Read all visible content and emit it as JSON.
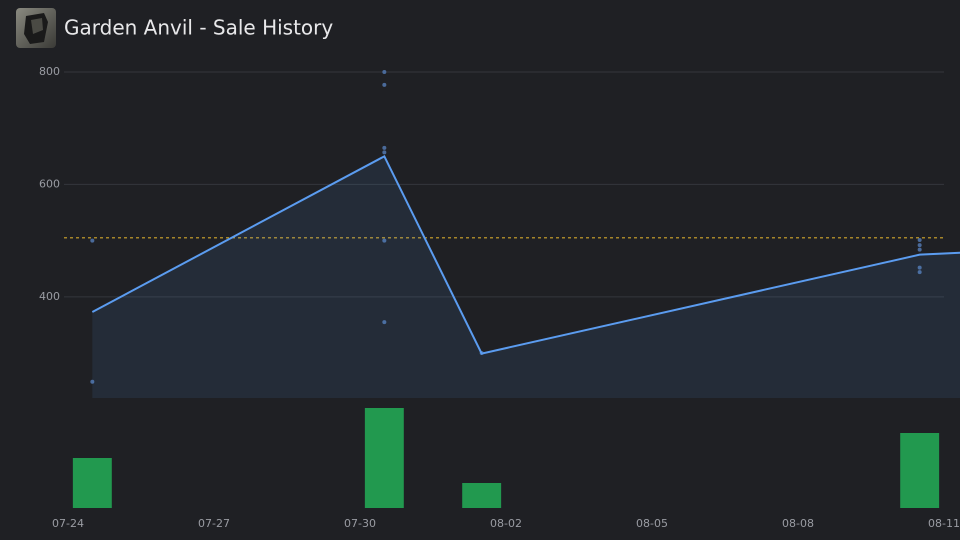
{
  "chart_data": {
    "type": "line",
    "title": "Garden Anvil - Sale History",
    "x": [
      "07-24",
      "07-30",
      "08-01",
      "08-10",
      "08-11"
    ],
    "series": [
      {
        "color": "#5b9cf0",
        "values": [
          373,
          650,
          299,
          475,
          479
        ]
      }
    ],
    "sales": {
      "color": "#4a6a9a",
      "x": [
        "07-24",
        "07-24",
        "07-30",
        "07-30",
        "07-30",
        "07-30",
        "07-30",
        "07-30",
        "08-01",
        "08-10",
        "08-10",
        "08-10",
        "08-10",
        "08-10"
      ],
      "values": [
        500,
        249,
        800,
        777,
        665,
        657,
        500,
        355,
        300,
        501,
        492,
        484,
        452,
        444
      ]
    },
    "volume": {
      "color": "#22994f",
      "x": [
        "07-24",
        "07-30",
        "08-01",
        "08-10"
      ],
      "values": [
        2,
        4,
        1,
        3
      ],
      "vlim": [
        0,
        4
      ]
    },
    "reference_line": {
      "value": 505,
      "color": "#d4a72c"
    },
    "xlim": [
      "07-24",
      "08-11"
    ],
    "xticks": [
      "07-24",
      "07-27",
      "07-30",
      "08-02",
      "08-05",
      "08-08",
      "08-11"
    ],
    "ylim": [
      220,
      800
    ],
    "yticks": [
      400,
      600,
      800
    ],
    "grid": true
  }
}
